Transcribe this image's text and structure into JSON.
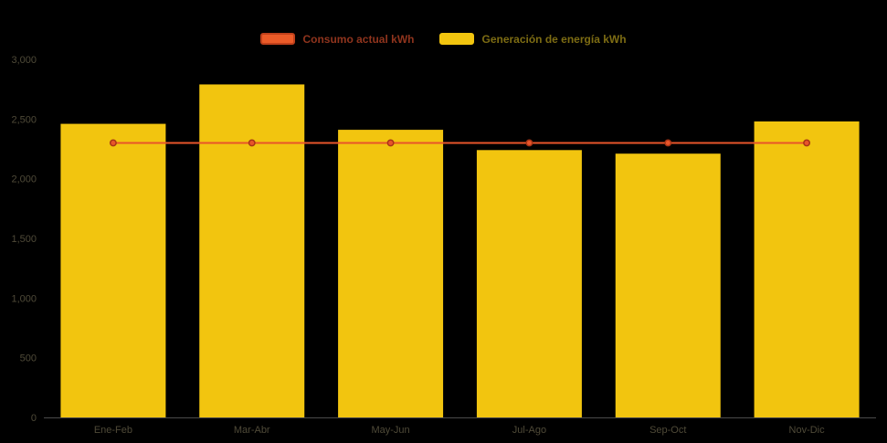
{
  "page": {
    "background_color": "#000000"
  },
  "legend": {
    "items": [
      {
        "label": "Consumo actual kWh",
        "series_type": "line",
        "swatch_color": "#eb5b28",
        "swatch_border_color": "#c0401b",
        "text_color": "#8f341d"
      },
      {
        "label": "Generación de energía kWh",
        "series_type": "bar",
        "swatch_color": "#f2c50f",
        "swatch_border_color": "#f2c50f",
        "text_color": "#7d6c13"
      }
    ]
  },
  "chart_data": {
    "type": "bar",
    "title": "",
    "xlabel": "",
    "ylabel": "",
    "categories": [
      "Ene-Feb",
      "Mar-Abr",
      "May-Jun",
      "Jul-Ago",
      "Sep-Oct",
      "Nov-Dic"
    ],
    "series": [
      {
        "name": "Generación de energía kWh",
        "type": "bar",
        "color": "#f2c50f",
        "values": [
          2460,
          2790,
          2410,
          2240,
          2210,
          2480
        ]
      },
      {
        "name": "Consumo actual kWh",
        "type": "line",
        "color": "#e8552a",
        "point_stroke_color": "#a83516",
        "values": [
          2300,
          2300,
          2300,
          2300,
          2300,
          2300
        ]
      }
    ],
    "ylim": [
      0,
      3000
    ],
    "ytick_step": 500,
    "ytick_labels": [
      "0",
      "500",
      "1,000",
      "1,500",
      "2,000",
      "2,500",
      "3,000"
    ],
    "grid": false,
    "legend_position": "top",
    "axis_label_color": "#4f4a38",
    "axis_line_color": "#4a4a4a"
  }
}
